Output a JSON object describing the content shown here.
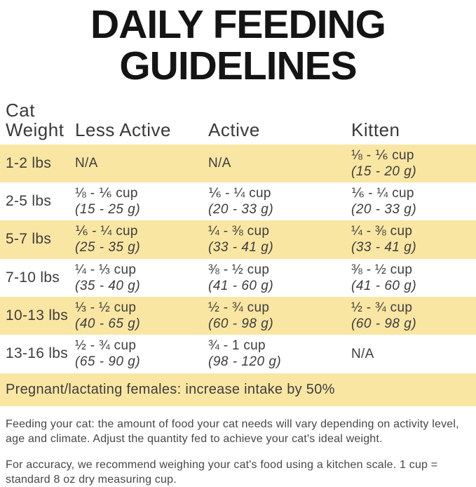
{
  "title": {
    "line1": "DAILY FEEDING",
    "line2": "GUIDELINES"
  },
  "table": {
    "headers": {
      "weight_line1": "Cat",
      "weight_line2": "Weight",
      "less_active": "Less Active",
      "active": "Active",
      "kitten": "Kitten"
    },
    "rows": [
      {
        "weight": "1-2 lbs",
        "less_active": {
          "cups": "N/A",
          "grams": ""
        },
        "active": {
          "cups": "N/A",
          "grams": ""
        },
        "kitten": {
          "cups": "⅛ - ⅙ cup",
          "grams": "(15 - 20 g)"
        }
      },
      {
        "weight": "2-5 lbs",
        "less_active": {
          "cups": "⅛ - ⅙ cup",
          "grams": "(15 - 25 g)"
        },
        "active": {
          "cups": "⅙ - ¼ cup",
          "grams": "(20 - 33 g)"
        },
        "kitten": {
          "cups": "⅙ - ¼ cup",
          "grams": "(20 - 33 g)"
        }
      },
      {
        "weight": "5-7 lbs",
        "less_active": {
          "cups": "⅙ - ¼ cup",
          "grams": "(25 - 35 g)"
        },
        "active": {
          "cups": "¼ - ⅜ cup",
          "grams": "(33 - 41 g)"
        },
        "kitten": {
          "cups": "¼ - ⅜ cup",
          "grams": "(33 - 41 g)"
        }
      },
      {
        "weight": "7-10 lbs",
        "less_active": {
          "cups": "¼ - ⅓ cup",
          "grams": "(35 - 40 g)"
        },
        "active": {
          "cups": "⅜ - ½ cup",
          "grams": "(41 - 60 g)"
        },
        "kitten": {
          "cups": "⅜ - ½ cup",
          "grams": "(41 - 60 g)"
        }
      },
      {
        "weight": "10-13 lbs",
        "less_active": {
          "cups": "⅓ - ½ cup",
          "grams": "(40 - 65 g)"
        },
        "active": {
          "cups": "½ - ¾ cup",
          "grams": "(60 - 98 g)"
        },
        "kitten": {
          "cups": "½ - ¾ cup",
          "grams": "(60 - 98 g)"
        }
      },
      {
        "weight": "13-16 lbs",
        "less_active": {
          "cups": "½ - ¾ cup",
          "grams": "(65 - 90 g)"
        },
        "active": {
          "cups": "¾ - 1 cup",
          "grams": "(98 - 120 g)"
        },
        "kitten": {
          "cups": "N/A",
          "grams": ""
        }
      }
    ],
    "note": "Pregnant/lactating females: increase intake by 50%"
  },
  "footer": {
    "para1": "Feeding your cat: the amount of food your cat needs will vary depending on activity level, age and climate. Adjust the quantity fed to achieve your cat's ideal weight.",
    "para2": "For accuracy, we recommend weighing your cat's food using a kitchen scale. 1 cup = standard 8 oz dry measuring cup."
  },
  "colors": {
    "row_highlight": "#fae6a3",
    "title_text": "#141414",
    "body_text": "#3d3d3d"
  }
}
